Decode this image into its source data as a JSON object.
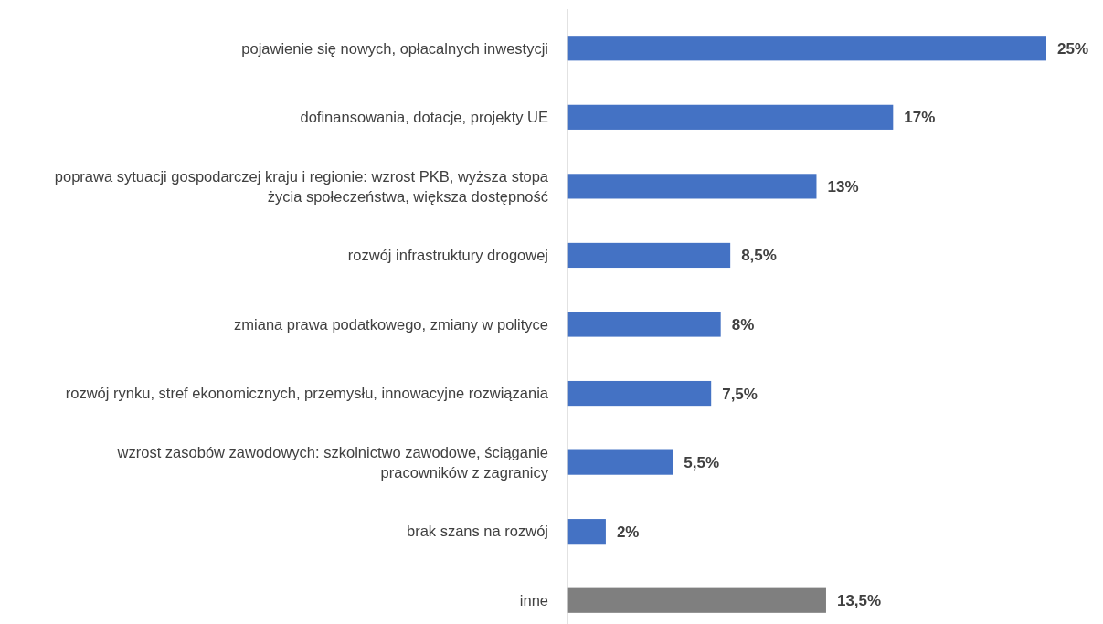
{
  "chart_data": {
    "type": "bar",
    "orientation": "horizontal",
    "categories": [
      "pojawienie się nowych, opłacalnych inwestycji",
      "dofinansowania, dotacje, projekty UE",
      "poprawa sytuacji gospodarczej kraju i regionie: wzrost PKB, wyższa stopa życia społeczeństwa, większa dostępność",
      "rozwój infrastruktury drogowej",
      "zmiana prawa podatkowego, zmiany w polityce",
      "rozwój rynku, stref ekonomicznych, przemysłu, innowacyjne rozwiązania",
      "wzrost zasobów zawodowych: szkolnictwo zawodowe, ściąganie pracowników z zagranicy",
      "brak szans na rozwój",
      "inne"
    ],
    "values": [
      25,
      17,
      13,
      8.5,
      8,
      7.5,
      5.5,
      2,
      13.5
    ],
    "colors": [
      "#4472c4",
      "#4472c4",
      "#4472c4",
      "#4472c4",
      "#4472c4",
      "#4472c4",
      "#4472c4",
      "#4472c4",
      "#7f7f7f"
    ],
    "value_labels": [
      "25%",
      "17%",
      "13%",
      "8,5%",
      "8%",
      "7,5%",
      "5,5%",
      "2%",
      "13,5%"
    ]
  }
}
